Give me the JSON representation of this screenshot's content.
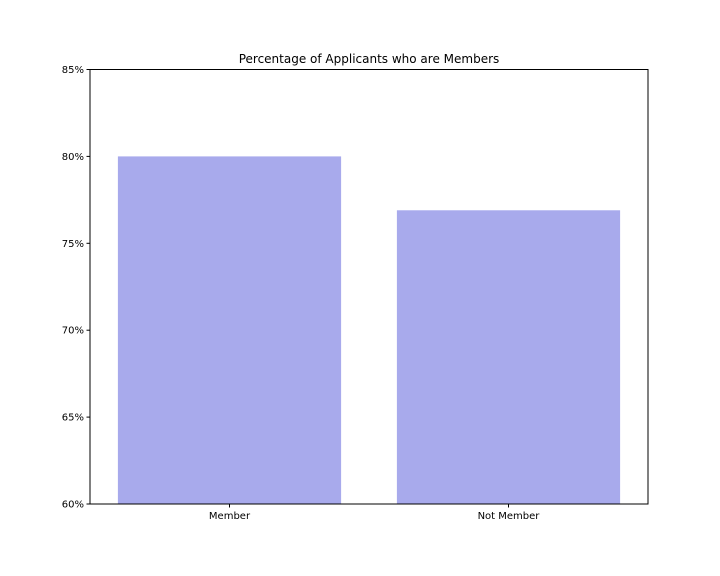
{
  "chart_data": {
    "type": "bar",
    "title": "Percentage of Applicants who are Members",
    "categories": [
      "Member",
      "Not Member"
    ],
    "values": [
      80.0,
      76.9
    ],
    "value_format": "percent",
    "ylim": [
      60,
      85
    ],
    "yticks": [
      60,
      65,
      70,
      75,
      80,
      85
    ],
    "ytick_labels": [
      "60%",
      "65%",
      "70%",
      "75%",
      "80%",
      "85%"
    ],
    "xlabel": "",
    "ylabel": "",
    "grid": false,
    "bar_color": "#a8aaec"
  }
}
